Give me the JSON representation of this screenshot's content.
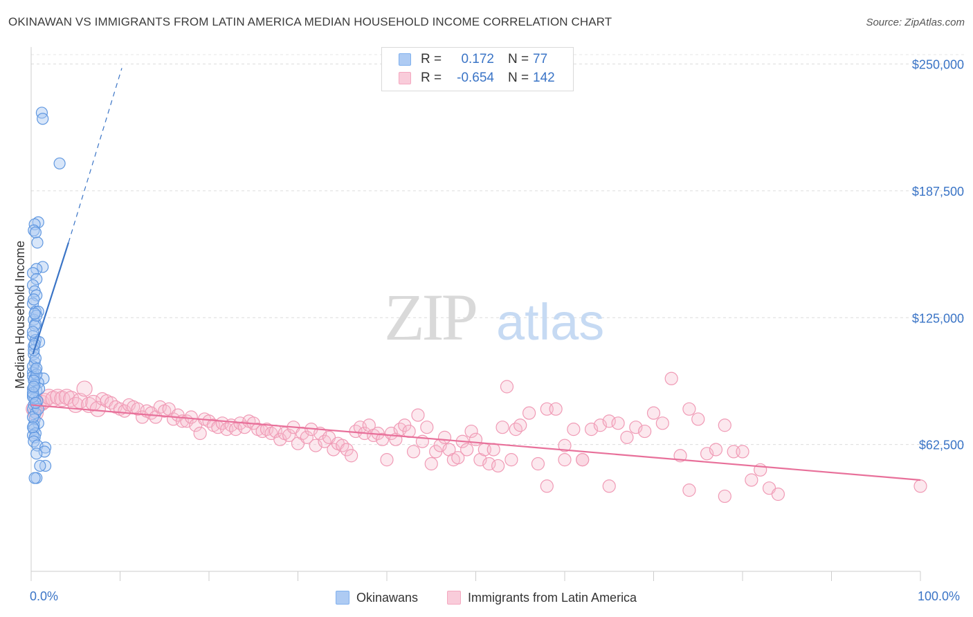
{
  "title": "OKINAWAN VS IMMIGRANTS FROM LATIN AMERICA MEDIAN HOUSEHOLD INCOME CORRELATION CHART",
  "source": "Source: ZipAtlas.com",
  "watermark": {
    "zip": "ZIP",
    "atlas": "atlas"
  },
  "legend": {
    "rows": [
      {
        "r_label": "R =",
        "r_value": "0.172",
        "n_label": "N =",
        "n_value": "77",
        "color": "#7fb0ee"
      },
      {
        "r_label": "R =",
        "r_value": "-0.654",
        "n_label": "N =",
        "n_value": "142",
        "color": "#f4a7bf"
      }
    ]
  },
  "bottom_legend": [
    {
      "label": "Okinawans",
      "color": "#7fb0ee"
    },
    {
      "label": "Immigrants from Latin America",
      "color": "#f4a7bf"
    }
  ],
  "chart_data": {
    "type": "scatter",
    "title": "OKINAWAN VS IMMIGRANTS FROM LATIN AMERICA MEDIAN HOUSEHOLD INCOME CORRELATION CHART",
    "xlabel": "",
    "ylabel": "Median Household Income",
    "xlim": [
      0,
      100
    ],
    "ylim": [
      0,
      257000
    ],
    "x_tick_labels": [
      "0.0%",
      "100.0%"
    ],
    "y_ticks": [
      62500,
      125000,
      187500,
      250000
    ],
    "y_tick_labels": [
      "$62,500",
      "$125,000",
      "$187,500",
      "$250,000"
    ],
    "grid": true,
    "colors": {
      "okinawans": "#3a74c6",
      "latin": "#e8709a",
      "axis_text": "#3a74c6"
    },
    "series": [
      {
        "name": "Okinawans",
        "color": "#7fb0ee",
        "points": [
          [
            1.2,
            226000
          ],
          [
            1.3,
            223000
          ],
          [
            3.2,
            201000
          ],
          [
            0.8,
            172000
          ],
          [
            0.4,
            171000
          ],
          [
            0.3,
            168000
          ],
          [
            0.5,
            167000
          ],
          [
            0.7,
            162000
          ],
          [
            1.3,
            150000
          ],
          [
            0.6,
            149000
          ],
          [
            0.2,
            147000
          ],
          [
            0.6,
            144000
          ],
          [
            0.2,
            141000
          ],
          [
            0.4,
            138000
          ],
          [
            0.6,
            136000
          ],
          [
            0.2,
            132000
          ],
          [
            0.5,
            128000
          ],
          [
            0.8,
            128000
          ],
          [
            0.3,
            124000
          ],
          [
            0.5,
            122000
          ],
          [
            0.4,
            121000
          ],
          [
            0.2,
            116000
          ],
          [
            0.5,
            114000
          ],
          [
            0.9,
            113000
          ],
          [
            0.3,
            111000
          ],
          [
            0.3,
            107000
          ],
          [
            0.4,
            103000
          ],
          [
            0.5,
            99000
          ],
          [
            0.2,
            98000
          ],
          [
            0.2,
            96000
          ],
          [
            0.4,
            95000
          ],
          [
            1.4,
            95000
          ],
          [
            0.8,
            93000
          ],
          [
            0.4,
            92000
          ],
          [
            0.2,
            90000
          ],
          [
            0.6,
            89000
          ],
          [
            0.2,
            87000
          ],
          [
            0.4,
            85000
          ],
          [
            0.7,
            84000
          ],
          [
            0.3,
            82000
          ],
          [
            0.2,
            80000
          ],
          [
            0.5,
            78000
          ],
          [
            0.4,
            75000
          ],
          [
            0.8,
            73000
          ],
          [
            0.3,
            72000
          ],
          [
            0.3,
            70000
          ],
          [
            0.5,
            68000
          ],
          [
            0.2,
            67000
          ],
          [
            0.4,
            66000
          ],
          [
            0.3,
            64000
          ],
          [
            0.7,
            62000
          ],
          [
            1.6,
            61000
          ],
          [
            1.5,
            59000
          ],
          [
            0.6,
            58000
          ],
          [
            1.6,
            52000
          ],
          [
            1.0,
            52000
          ],
          [
            0.6,
            46000
          ],
          [
            0.4,
            46000
          ],
          [
            0.9,
            90000
          ],
          [
            0.2,
            101000
          ],
          [
            0.5,
            105000
          ],
          [
            0.2,
            118000
          ],
          [
            0.6,
            126000
          ],
          [
            0.3,
            134000
          ],
          [
            0.2,
            86000
          ],
          [
            0.6,
            97000
          ],
          [
            0.3,
            109000
          ],
          [
            0.4,
            127000
          ],
          [
            0.2,
            76000
          ],
          [
            0.8,
            80000
          ],
          [
            0.3,
            94000
          ],
          [
            0.2,
            88000
          ],
          [
            0.6,
            100000
          ],
          [
            0.4,
            112000
          ],
          [
            0.2,
            71000
          ],
          [
            0.5,
            83000
          ],
          [
            0.3,
            91000
          ]
        ]
      },
      {
        "name": "Immigrants from Latin America",
        "color": "#f4a7bf",
        "points": [
          [
            0.3,
            80000
          ],
          [
            0.5,
            78000
          ],
          [
            0.8,
            82000
          ],
          [
            1.2,
            83000
          ],
          [
            1.5,
            84000
          ],
          [
            2.0,
            86000
          ],
          [
            2.5,
            85000
          ],
          [
            3.0,
            86000
          ],
          [
            3.5,
            85000
          ],
          [
            4.0,
            86000
          ],
          [
            4.5,
            85000
          ],
          [
            5.0,
            82000
          ],
          [
            5.5,
            84000
          ],
          [
            6.0,
            90000
          ],
          [
            6.5,
            82000
          ],
          [
            7.0,
            83000
          ],
          [
            7.5,
            80000
          ],
          [
            8.0,
            85000
          ],
          [
            8.5,
            84000
          ],
          [
            9.0,
            83000
          ],
          [
            9.5,
            81000
          ],
          [
            10.0,
            80000
          ],
          [
            10.5,
            79000
          ],
          [
            11.0,
            82000
          ],
          [
            11.5,
            81000
          ],
          [
            12.0,
            80000
          ],
          [
            12.5,
            76000
          ],
          [
            13.0,
            79000
          ],
          [
            13.5,
            78000
          ],
          [
            14.0,
            76000
          ],
          [
            14.5,
            81000
          ],
          [
            15.0,
            79000
          ],
          [
            15.5,
            80000
          ],
          [
            16.0,
            75000
          ],
          [
            16.5,
            77000
          ],
          [
            17.0,
            74000
          ],
          [
            17.5,
            74000
          ],
          [
            18.0,
            76000
          ],
          [
            18.5,
            72000
          ],
          [
            19.0,
            68000
          ],
          [
            19.5,
            75000
          ],
          [
            20.0,
            74000
          ],
          [
            20.5,
            72000
          ],
          [
            21.0,
            71000
          ],
          [
            21.5,
            73000
          ],
          [
            22.0,
            70000
          ],
          [
            22.5,
            72000
          ],
          [
            23.0,
            70000
          ],
          [
            23.5,
            73000
          ],
          [
            24.0,
            71000
          ],
          [
            24.5,
            74000
          ],
          [
            25.0,
            73000
          ],
          [
            25.5,
            70000
          ],
          [
            26.0,
            69000
          ],
          [
            26.5,
            70000
          ],
          [
            27.0,
            68000
          ],
          [
            27.5,
            69000
          ],
          [
            28.0,
            65000
          ],
          [
            28.5,
            68000
          ],
          [
            29.0,
            67000
          ],
          [
            29.5,
            71000
          ],
          [
            30.0,
            63000
          ],
          [
            30.5,
            68000
          ],
          [
            31.0,
            66000
          ],
          [
            31.5,
            70000
          ],
          [
            32.0,
            62000
          ],
          [
            32.5,
            68000
          ],
          [
            33.0,
            64000
          ],
          [
            33.5,
            66000
          ],
          [
            34.0,
            60000
          ],
          [
            34.5,
            63000
          ],
          [
            35.0,
            62000
          ],
          [
            35.5,
            60000
          ],
          [
            36.0,
            57000
          ],
          [
            36.5,
            69000
          ],
          [
            37.0,
            71000
          ],
          [
            37.5,
            68000
          ],
          [
            38.0,
            72000
          ],
          [
            38.5,
            67000
          ],
          [
            39.0,
            68000
          ],
          [
            39.5,
            65000
          ],
          [
            40.0,
            55000
          ],
          [
            40.5,
            68000
          ],
          [
            41.0,
            65000
          ],
          [
            41.5,
            70000
          ],
          [
            42.0,
            72000
          ],
          [
            42.5,
            69000
          ],
          [
            43.0,
            59000
          ],
          [
            43.5,
            77000
          ],
          [
            44.0,
            64000
          ],
          [
            44.5,
            71000
          ],
          [
            45.0,
            53000
          ],
          [
            45.5,
            59000
          ],
          [
            46.0,
            62000
          ],
          [
            46.5,
            66000
          ],
          [
            47.0,
            60000
          ],
          [
            47.5,
            55000
          ],
          [
            48.0,
            56000
          ],
          [
            48.5,
            64000
          ],
          [
            49.0,
            60000
          ],
          [
            49.5,
            69000
          ],
          [
            50.0,
            65000
          ],
          [
            50.5,
            55000
          ],
          [
            51.0,
            60000
          ],
          [
            51.5,
            53000
          ],
          [
            52.0,
            60000
          ],
          [
            52.5,
            52000
          ],
          [
            53.0,
            71000
          ],
          [
            53.5,
            91000
          ],
          [
            54.0,
            55000
          ],
          [
            54.5,
            70000
          ],
          [
            55.0,
            72000
          ],
          [
            56.0,
            78000
          ],
          [
            57.0,
            53000
          ],
          [
            58.0,
            80000
          ],
          [
            59.0,
            80000
          ],
          [
            60.0,
            62000
          ],
          [
            61.0,
            70000
          ],
          [
            62.0,
            55000
          ],
          [
            63.0,
            70000
          ],
          [
            64.0,
            72000
          ],
          [
            65.0,
            74000
          ],
          [
            66.0,
            73000
          ],
          [
            67.0,
            66000
          ],
          [
            68.0,
            71000
          ],
          [
            69.0,
            69000
          ],
          [
            70.0,
            78000
          ],
          [
            71.0,
            73000
          ],
          [
            72.0,
            95000
          ],
          [
            73.0,
            57000
          ],
          [
            74.0,
            80000
          ],
          [
            75.0,
            75000
          ],
          [
            76.0,
            58000
          ],
          [
            77.0,
            60000
          ],
          [
            78.0,
            72000
          ],
          [
            79.0,
            59000
          ],
          [
            80.0,
            59000
          ],
          [
            81.0,
            45000
          ],
          [
            82.0,
            50000
          ],
          [
            83.0,
            41000
          ],
          [
            84.0,
            38000
          ],
          [
            78.0,
            37000
          ],
          [
            60.0,
            55000
          ],
          [
            58.0,
            42000
          ],
          [
            62.0,
            55000
          ],
          [
            74.0,
            40000
          ],
          [
            100.0,
            42000
          ],
          [
            65.0,
            42000
          ]
        ]
      }
    ],
    "trend_lines": [
      {
        "series": "Okinawans",
        "solid": [
          [
            0.2,
            107000
          ],
          [
            4.2,
            162000
          ]
        ],
        "dashed": [
          [
            4.2,
            162000
          ],
          [
            10.2,
            248000
          ]
        ]
      },
      {
        "series": "Immigrants from Latin America",
        "solid": [
          [
            0,
            82000
          ],
          [
            100,
            45000
          ]
        ]
      }
    ]
  }
}
